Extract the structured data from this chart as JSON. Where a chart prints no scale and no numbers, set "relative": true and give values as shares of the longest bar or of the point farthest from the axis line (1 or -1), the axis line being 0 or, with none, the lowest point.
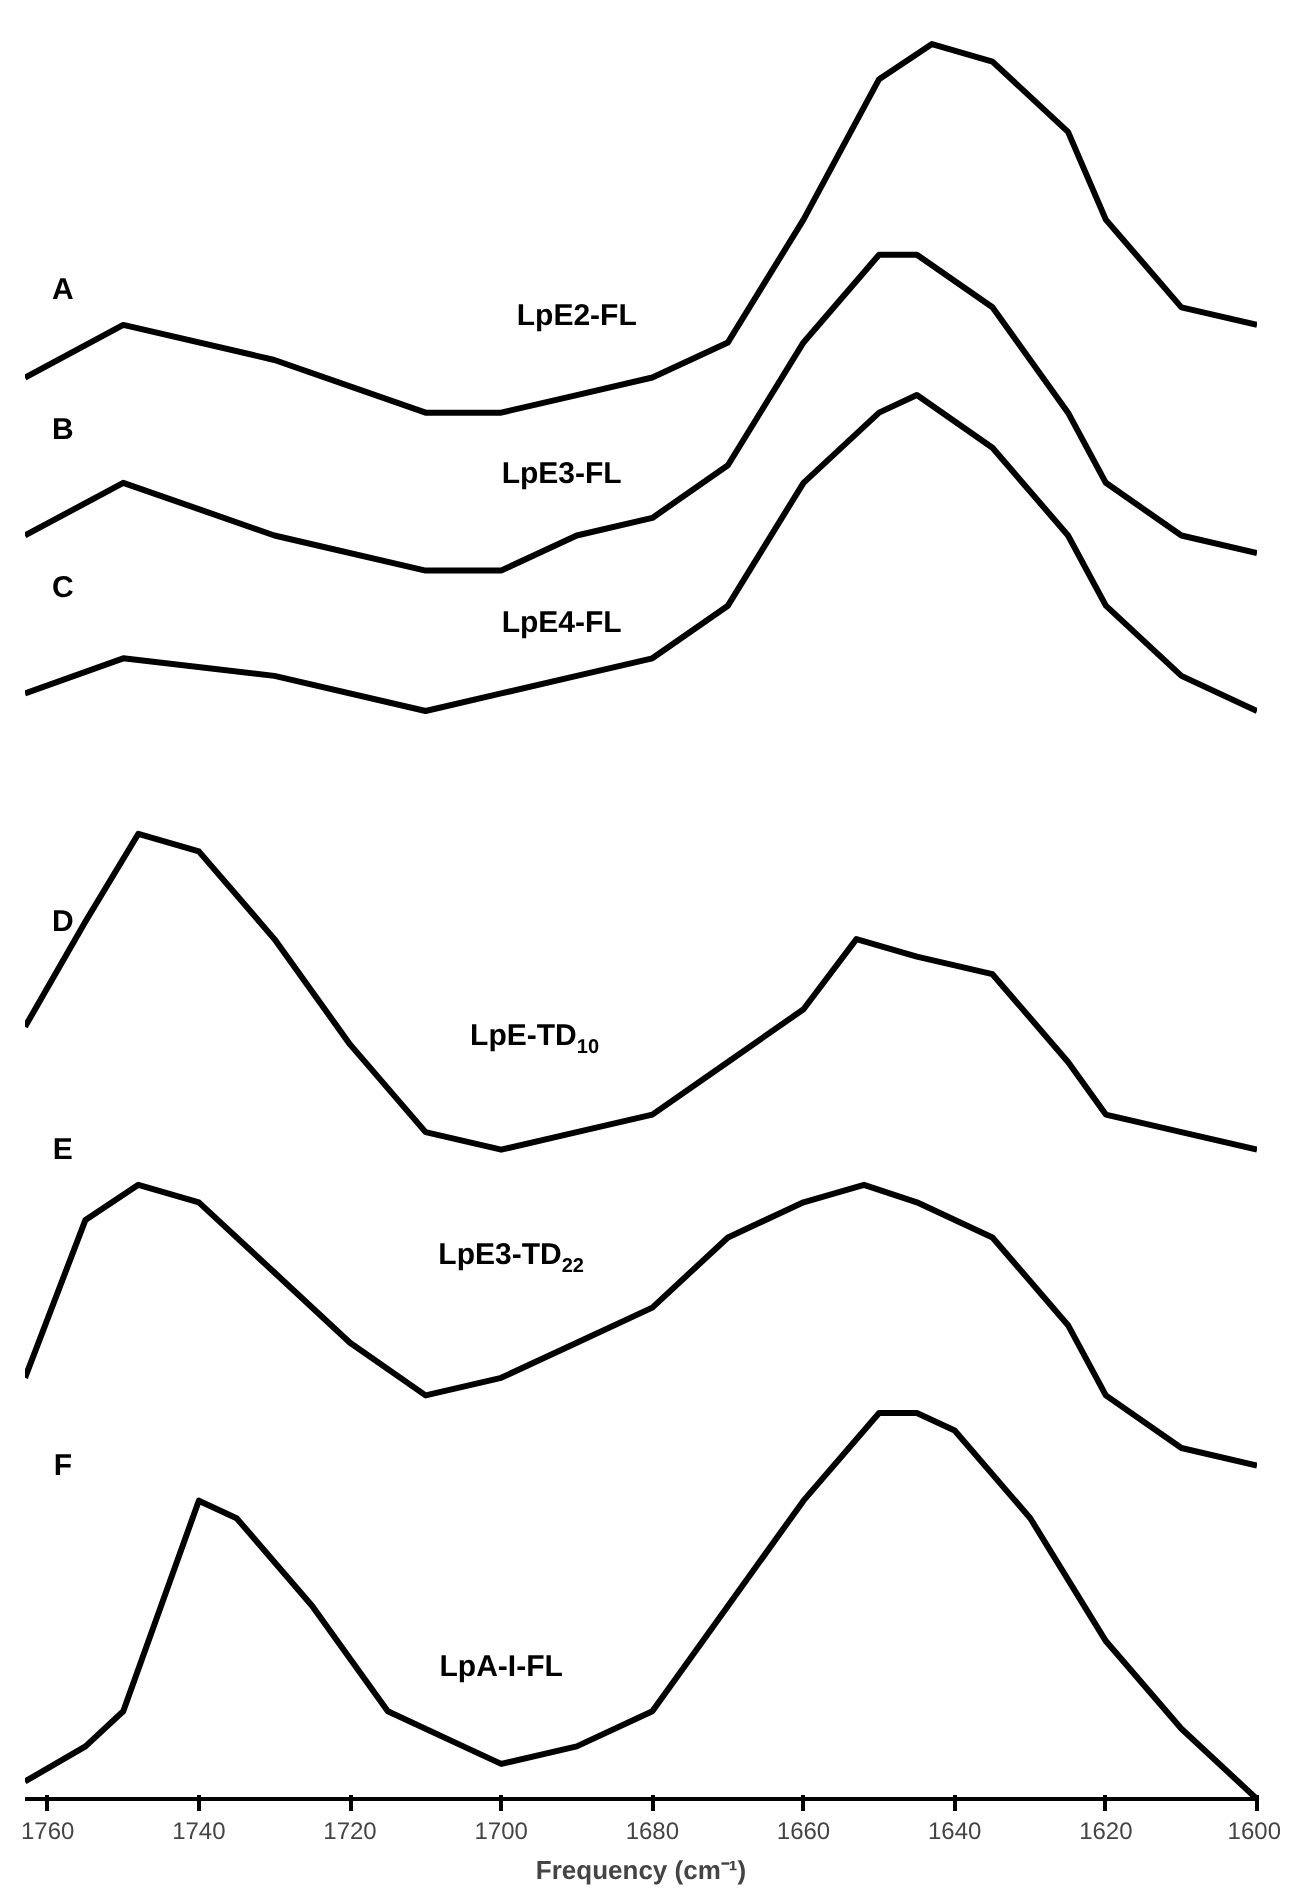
{
  "chart_data": {
    "type": "line",
    "relative": true,
    "xlabel": "Frequency (cm⁻¹)",
    "xlim": [
      1763,
      1600
    ],
    "xticks": [
      1760,
      1740,
      1720,
      1700,
      1680,
      1660,
      1640,
      1620,
      1600
    ],
    "grid": false,
    "marker": "none",
    "line_style": "solid",
    "series": [
      {
        "name": "LpE2-FL",
        "color": "#000000",
        "x": [
          1763,
          1750,
          1730,
          1710,
          1700,
          1690,
          1680,
          1670,
          1660,
          1650,
          1643,
          1635,
          1625,
          1620,
          1610,
          1600
        ],
        "values": [
          0.81,
          0.84,
          0.82,
          0.79,
          0.79,
          0.8,
          0.81,
          0.83,
          0.9,
          0.98,
          1.0,
          0.99,
          0.95,
          0.9,
          0.85,
          0.84
        ]
      },
      {
        "name": "LpE3-FL",
        "color": "#000000",
        "x": [
          1763,
          1750,
          1730,
          1710,
          1700,
          1690,
          1680,
          1670,
          1660,
          1650,
          1645,
          1635,
          1625,
          1620,
          1610,
          1600
        ],
        "values": [
          0.72,
          0.75,
          0.72,
          0.7,
          0.7,
          0.72,
          0.73,
          0.76,
          0.83,
          0.88,
          0.88,
          0.85,
          0.79,
          0.75,
          0.72,
          0.71
        ]
      },
      {
        "name": "LpE4-FL",
        "color": "#000000",
        "x": [
          1763,
          1750,
          1730,
          1710,
          1700,
          1690,
          1680,
          1670,
          1660,
          1650,
          1645,
          1635,
          1625,
          1620,
          1610,
          1600
        ],
        "values": [
          0.63,
          0.65,
          0.64,
          0.62,
          0.63,
          0.64,
          0.65,
          0.68,
          0.75,
          0.79,
          0.8,
          0.77,
          0.72,
          0.68,
          0.64,
          0.62
        ]
      },
      {
        "name": "LpE-TD$_{10}$",
        "color": "#000000",
        "x": [
          1763,
          1755,
          1748,
          1740,
          1730,
          1720,
          1710,
          1700,
          1690,
          1680,
          1670,
          1660,
          1653,
          1645,
          1635,
          1625,
          1620,
          1610,
          1600
        ],
        "values": [
          0.44,
          0.5,
          0.55,
          0.54,
          0.49,
          0.43,
          0.38,
          0.37,
          0.38,
          0.39,
          0.42,
          0.45,
          0.49,
          0.48,
          0.47,
          0.42,
          0.39,
          0.38,
          0.37
        ]
      },
      {
        "name": "LpE3-TD$_{22}$",
        "color": "#000000",
        "x": [
          1763,
          1755,
          1748,
          1740,
          1730,
          1720,
          1710,
          1700,
          1690,
          1680,
          1670,
          1660,
          1652,
          1645,
          1635,
          1625,
          1620,
          1610,
          1600
        ],
        "values": [
          0.24,
          0.33,
          0.35,
          0.34,
          0.3,
          0.26,
          0.23,
          0.24,
          0.26,
          0.28,
          0.32,
          0.34,
          0.35,
          0.34,
          0.32,
          0.27,
          0.23,
          0.2,
          0.19
        ]
      },
      {
        "name": "LpA-I-FL",
        "color": "#000000",
        "x": [
          1763,
          1755,
          1750,
          1745,
          1740,
          1735,
          1725,
          1715,
          1705,
          1700,
          1690,
          1680,
          1670,
          1660,
          1650,
          1645,
          1640,
          1630,
          1620,
          1610,
          1600
        ],
        "values": [
          0.01,
          0.03,
          0.05,
          0.11,
          0.17,
          0.16,
          0.11,
          0.05,
          0.03,
          0.02,
          0.03,
          0.05,
          0.11,
          0.17,
          0.22,
          0.22,
          0.21,
          0.16,
          0.09,
          0.04,
          0.0
        ]
      }
    ],
    "annotations": [
      "A",
      "B",
      "C",
      "D",
      "E",
      "F"
    ]
  }
}
